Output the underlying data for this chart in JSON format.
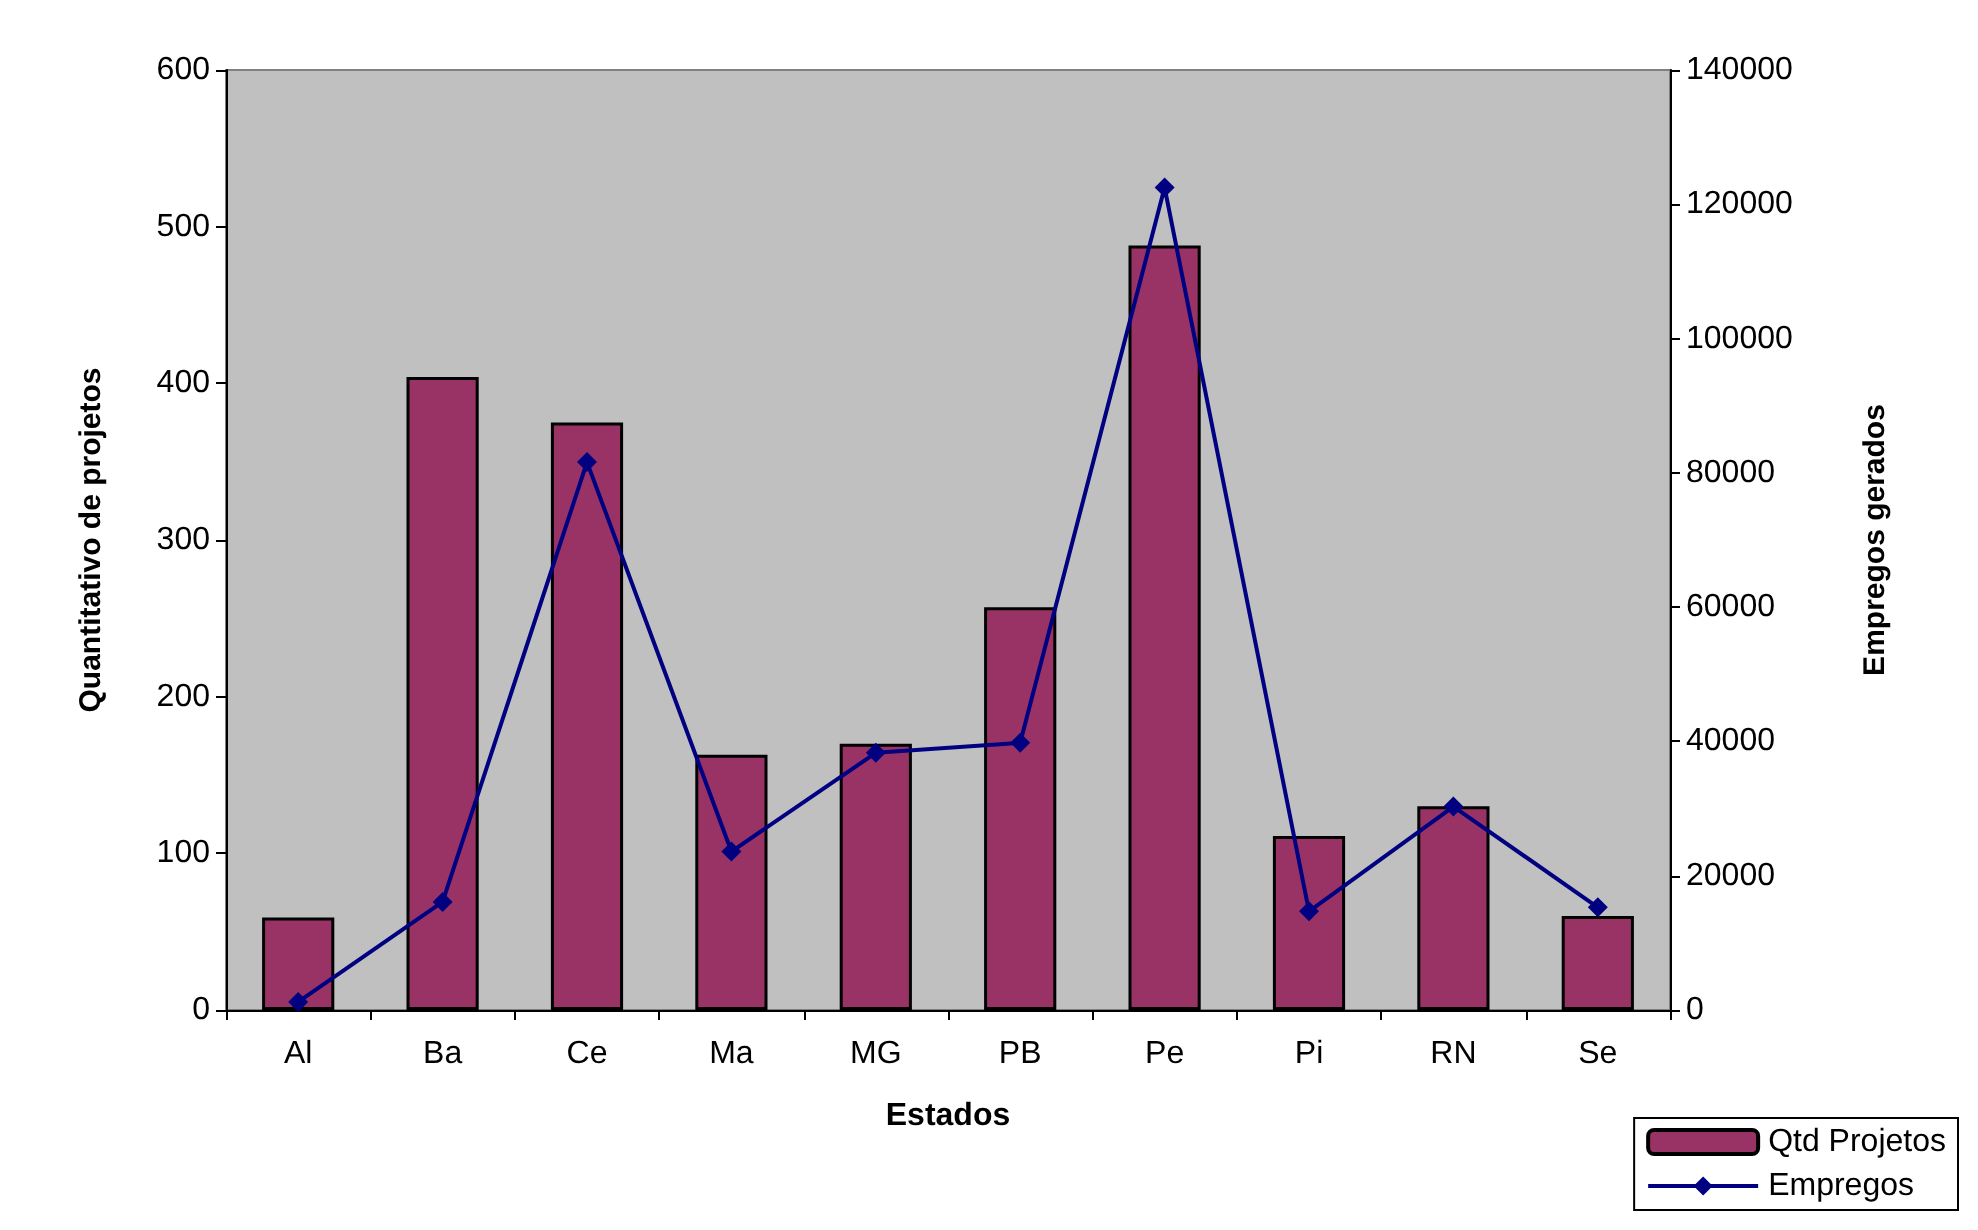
{
  "chart_data": {
    "type": "bar",
    "xlabel": "Estados",
    "ylabel": "Quantitativo de projetos",
    "y2label": "Empregos gerados",
    "categories": [
      "Al",
      "Ba",
      "Ce",
      "Ma",
      "MG",
      "PB",
      "Pe",
      "Pi",
      "RN",
      "Se"
    ],
    "series": [
      {
        "name": "Qtd Projetos",
        "color": "#993366",
        "values": [
          59,
          404,
          375,
          163,
          170,
          257,
          488,
          111,
          130,
          60
        ]
      },
      {
        "name": "Empregos",
        "type": "line",
        "axis": "y2",
        "color": "#000080",
        "marker": "diamond",
        "values": [
          1200,
          16100,
          81600,
          23600,
          38300,
          39800,
          122500,
          14700,
          30300,
          15300
        ]
      }
    ],
    "ylim": [
      0,
      600
    ],
    "yticks": [
      0,
      100,
      200,
      300,
      400,
      500,
      600
    ],
    "y2lim": [
      0,
      140000
    ],
    "y2ticks": [
      0,
      20000,
      40000,
      60000,
      80000,
      100000,
      120000,
      140000
    ],
    "grid": false,
    "legend": "bottom right"
  }
}
